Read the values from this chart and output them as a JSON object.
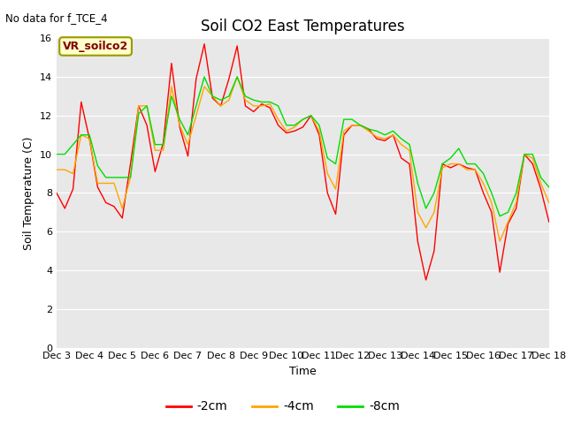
{
  "title": "Soil CO2 East Temperatures",
  "ylabel": "Soil Temperature (C)",
  "xlabel": "Time",
  "no_data_text": "No data for f_TCE_4",
  "legend_label": "VR_soilco2",
  "ylim": [
    0,
    16
  ],
  "fig_bg_color": "#ffffff",
  "plot_bg_color": "#e8e8e8",
  "series": {
    "-2cm": {
      "color": "#ff0000",
      "values": [
        8.0,
        7.2,
        8.2,
        12.7,
        10.8,
        8.3,
        7.5,
        7.3,
        6.7,
        9.5,
        12.5,
        11.5,
        9.1,
        10.6,
        14.7,
        11.4,
        9.9,
        13.9,
        15.7,
        12.9,
        12.5,
        13.9,
        15.6,
        12.5,
        12.2,
        12.6,
        12.4,
        11.5,
        11.1,
        11.2,
        11.4,
        12.0,
        11.0,
        8.0,
        6.9,
        11.0,
        11.5,
        11.5,
        11.3,
        10.8,
        10.7,
        11.0,
        9.8,
        9.5,
        5.5,
        3.5,
        5.0,
        9.5,
        9.3,
        9.5,
        9.3,
        9.2,
        8.0,
        7.0,
        3.9,
        6.4,
        7.2,
        10.0,
        9.5,
        8.2,
        6.5
      ]
    },
    "-4cm": {
      "color": "#ffa500",
      "values": [
        9.2,
        9.2,
        9.0,
        11.0,
        10.8,
        8.5,
        8.5,
        8.5,
        7.2,
        8.8,
        12.5,
        12.5,
        10.2,
        10.2,
        13.5,
        11.5,
        10.5,
        12.0,
        13.5,
        13.0,
        12.5,
        12.8,
        14.0,
        12.8,
        12.5,
        12.5,
        12.6,
        11.8,
        11.2,
        11.4,
        11.8,
        12.0,
        11.2,
        9.0,
        8.2,
        11.2,
        11.5,
        11.5,
        11.2,
        10.9,
        10.8,
        11.0,
        10.5,
        10.2,
        7.0,
        6.2,
        7.0,
        9.3,
        9.5,
        9.5,
        9.2,
        9.2,
        8.5,
        7.5,
        5.5,
        6.5,
        7.5,
        10.0,
        9.8,
        8.5,
        7.5
      ]
    },
    "-8cm": {
      "color": "#00dd00",
      "values": [
        10.0,
        10.0,
        10.5,
        11.0,
        11.0,
        9.4,
        8.8,
        8.8,
        8.8,
        8.8,
        12.1,
        12.5,
        10.5,
        10.5,
        13.0,
        11.8,
        11.0,
        12.5,
        14.0,
        13.0,
        12.8,
        13.0,
        14.0,
        13.0,
        12.8,
        12.7,
        12.7,
        12.5,
        11.5,
        11.5,
        11.8,
        12.0,
        11.5,
        9.8,
        9.5,
        11.8,
        11.8,
        11.5,
        11.3,
        11.2,
        11.0,
        11.2,
        10.8,
        10.5,
        8.5,
        7.2,
        8.0,
        9.5,
        9.8,
        10.3,
        9.5,
        9.5,
        9.0,
        8.0,
        6.8,
        7.0,
        8.0,
        10.0,
        10.0,
        8.8,
        8.3
      ]
    }
  },
  "xtick_labels": [
    "Dec 3",
    "Dec 4",
    "Dec 5",
    "Dec 6",
    "Dec 7",
    "Dec 8",
    "Dec 9",
    "Dec 10",
    "Dec 11",
    "Dec 12",
    "Dec 13",
    "Dec 14",
    "Dec 15",
    "Dec 16",
    "Dec 17",
    "Dec 18"
  ],
  "n_points": 61,
  "ytick_vals": [
    0,
    2,
    4,
    6,
    8,
    10,
    12,
    14,
    16
  ],
  "legend_entries": [
    "-2cm",
    "-4cm",
    "-8cm"
  ],
  "legend_colors": [
    "#ff0000",
    "#ffa500",
    "#00dd00"
  ],
  "grid_color": "#ffffff",
  "title_fontsize": 12,
  "axis_fontsize": 9,
  "tick_fontsize": 8
}
